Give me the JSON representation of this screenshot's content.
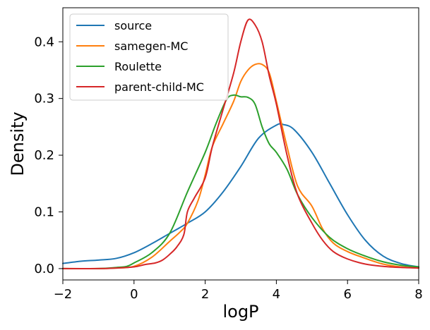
{
  "chart_data": {
    "type": "line",
    "title": "",
    "xlabel": "logP",
    "ylabel": "Density",
    "xlim": [
      -2,
      8
    ],
    "ylim": [
      -0.02,
      0.46
    ],
    "grid": false,
    "legend_position": "upper-left",
    "x_ticks": [
      -2,
      0,
      2,
      4,
      6,
      8
    ],
    "x_tick_labels": [
      "−2",
      "0",
      "2",
      "4",
      "6",
      "8"
    ],
    "y_ticks": [
      0.0,
      0.1,
      0.2,
      0.3,
      0.4
    ],
    "y_tick_labels": [
      "0.0",
      "0.1",
      "0.2",
      "0.3",
      "0.4"
    ],
    "series": [
      {
        "name": "source",
        "color": "#1f77b4",
        "x": [
          -2,
          -1.5,
          -1,
          -0.5,
          0,
          0.5,
          1,
          1.5,
          2,
          2.5,
          3,
          3.5,
          4,
          4.2,
          4.5,
          5,
          5.5,
          6,
          6.5,
          7,
          7.5,
          8
        ],
        "y": [
          0.009,
          0.013,
          0.015,
          0.018,
          0.028,
          0.044,
          0.062,
          0.08,
          0.1,
          0.135,
          0.18,
          0.23,
          0.253,
          0.254,
          0.245,
          0.205,
          0.15,
          0.095,
          0.05,
          0.022,
          0.009,
          0.003
        ]
      },
      {
        "name": "samegen-MC",
        "color": "#ff7f0e",
        "x": [
          -2,
          -1,
          -0.5,
          0,
          0.5,
          1,
          1.3,
          1.5,
          1.8,
          2,
          2.2,
          2.5,
          2.8,
          3,
          3.2,
          3.4,
          3.6,
          3.8,
          4,
          4.3,
          4.6,
          5,
          5.3,
          5.6,
          6,
          6.5,
          7,
          7.5,
          8
        ],
        "y": [
          0,
          0,
          0.001,
          0.004,
          0.02,
          0.048,
          0.065,
          0.08,
          0.12,
          0.165,
          0.215,
          0.255,
          0.295,
          0.33,
          0.35,
          0.36,
          0.36,
          0.345,
          0.295,
          0.215,
          0.145,
          0.11,
          0.07,
          0.045,
          0.03,
          0.018,
          0.008,
          0.003,
          0.001
        ]
      },
      {
        "name": "Roulette",
        "color": "#2ca02c",
        "x": [
          -2,
          -1,
          -0.5,
          -0.2,
          0,
          0.5,
          1,
          1.5,
          2,
          2.3,
          2.6,
          2.8,
          3,
          3.2,
          3.4,
          3.6,
          3.8,
          4,
          4.3,
          4.6,
          5,
          5.5,
          6,
          6.5,
          7,
          7.5,
          8
        ],
        "y": [
          0,
          0,
          0.002,
          0.004,
          0.01,
          0.028,
          0.062,
          0.135,
          0.205,
          0.255,
          0.298,
          0.306,
          0.303,
          0.302,
          0.29,
          0.25,
          0.22,
          0.205,
          0.175,
          0.13,
          0.09,
          0.055,
          0.035,
          0.022,
          0.012,
          0.006,
          0.003
        ]
      },
      {
        "name": "parent-child-MC",
        "color": "#d62728",
        "x": [
          -2,
          -1,
          -0.5,
          0,
          0.3,
          0.6,
          0.8,
          1,
          1.2,
          1.4,
          1.5,
          1.7,
          2,
          2.2,
          2.5,
          2.8,
          3,
          3.2,
          3.4,
          3.6,
          3.8,
          4,
          4.3,
          4.6,
          5,
          5.3,
          5.6,
          6,
          6.5,
          7,
          7.5,
          8
        ],
        "y": [
          0,
          0,
          0.001,
          0.003,
          0.007,
          0.01,
          0.015,
          0.025,
          0.038,
          0.06,
          0.1,
          0.125,
          0.16,
          0.215,
          0.28,
          0.345,
          0.4,
          0.438,
          0.43,
          0.4,
          0.34,
          0.29,
          0.2,
          0.13,
          0.08,
          0.05,
          0.03,
          0.017,
          0.008,
          0.004,
          0.002,
          0.001
        ]
      }
    ]
  }
}
